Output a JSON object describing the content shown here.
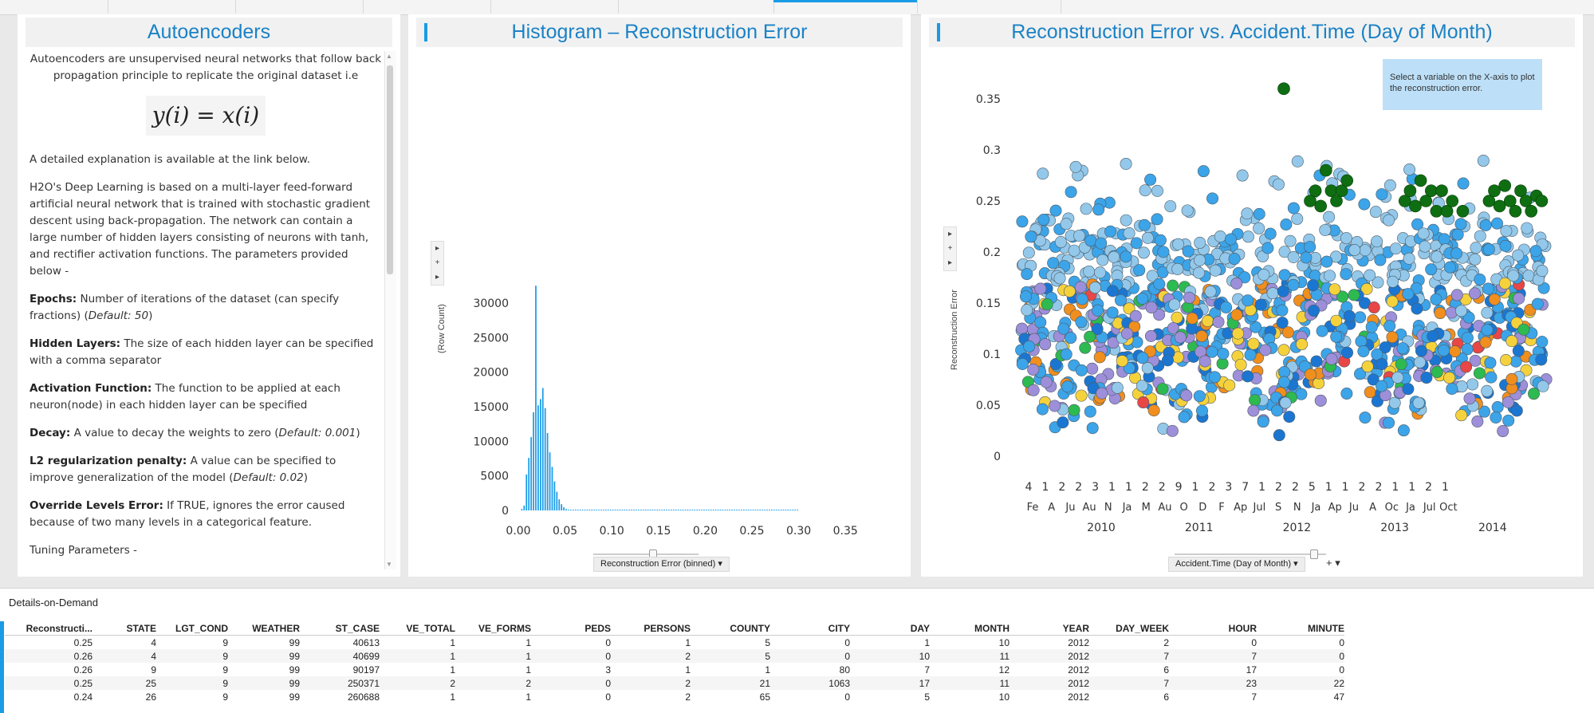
{
  "colors": {
    "accent": "#1a9be6",
    "title": "#1a82c6",
    "green": "#0f6e12"
  },
  "panel1": {
    "title": "Autoencoders",
    "intro": "Autoencoders are unsupervised neural networks that follow back propagation principle to replicate the original dataset i.e",
    "formula": "y(i) = x(i)",
    "link_note": "A detailed explanation is available at the link below.",
    "h2o_desc": "H2O's Deep Learning is based on a multi-layer feed-forward artificial neural network that is trained with stochastic gradient descent using back-propagation. The network can contain a large number of hidden layers consisting of neurons with tanh, and rectifier activation functions. The parameters provided below -",
    "params": [
      {
        "name": "Epochs:",
        "desc": "Number of iterations of the dataset (can specify fractions) (",
        "default": "Default: 50",
        "end": ")"
      },
      {
        "name": "Hidden Layers:",
        "desc": "The size of each hidden layer can be specified with a comma separator",
        "default": "",
        "end": ""
      },
      {
        "name": "Activation Function:",
        "desc": "The function to be applied at each neuron(node) in each hidden layer can be specified",
        "default": "",
        "end": ""
      },
      {
        "name": "Decay:",
        "desc": "A value to decay the weights to zero (",
        "default": "Default: 0.001",
        "end": ")"
      },
      {
        "name": "L2 regularization penalty:",
        "desc": "A value can be specified to improve generalization of the model (",
        "default": "Default: 0.02",
        "end": ")"
      },
      {
        "name": "Override Levels Error:",
        "desc": "If TRUE, ignores the error caused because of two many levels in a categorical feature.",
        "default": "",
        "end": ""
      }
    ],
    "tuning": "Tuning Parameters -"
  },
  "panel2": {
    "title": "Histogram – Reconstruction Error",
    "ylabel": "(Row Count)",
    "xaxis_selector": "Reconstruction Error (binned)",
    "ctrl": [
      "▸",
      "+",
      "▸"
    ]
  },
  "panel3": {
    "title": "Reconstruction Error vs. Accident.Time (Day of Month)",
    "ylabel": "Reconstruction Error",
    "xaxis_selector": "Accident.Time (Day of Month)",
    "plus": "+",
    "tooltip": "Select a variable on the X-axis to plot the reconstruction error.",
    "ctrl": [
      "▸",
      "+",
      "▸"
    ]
  },
  "chart_data": [
    {
      "type": "bar",
      "title": "Histogram – Reconstruction Error",
      "xlabel": "Reconstruction Error (binned)",
      "ylabel": "(Row Count)",
      "bin_width": 0.0025,
      "bins_start": 0.0,
      "values": [
        0,
        200,
        700,
        5200,
        7600,
        10600,
        14200,
        32500,
        15200,
        16100,
        17700,
        14800,
        11200,
        8400,
        6300,
        4200,
        2700,
        1600,
        900,
        450,
        200,
        90,
        40,
        20,
        10,
        8,
        6,
        5,
        4,
        3,
        3,
        2,
        2,
        2,
        2,
        1,
        1,
        1,
        1,
        1,
        1,
        1,
        1,
        1,
        1,
        1,
        1,
        1,
        1,
        1,
        1,
        1,
        1,
        1,
        1,
        1,
        1,
        1,
        1,
        1,
        1,
        1,
        1,
        1,
        1,
        1,
        1,
        1,
        1,
        1,
        1,
        1,
        1,
        1,
        1,
        1,
        1,
        1,
        1,
        1,
        1,
        1,
        1,
        1,
        1,
        1,
        1,
        1,
        1,
        1,
        1,
        1,
        1,
        1,
        1,
        1,
        1,
        1,
        1,
        1,
        1,
        1,
        1,
        1,
        1,
        1,
        1,
        1,
        1,
        1,
        1,
        1,
        1,
        1,
        1,
        1,
        1,
        1,
        1,
        1
      ],
      "x_ticks": [
        "0.00",
        "0.05",
        "0.10",
        "0.15",
        "0.20",
        "0.25",
        "0.30",
        "0.35"
      ],
      "y_ticks": [
        "0",
        "5000",
        "10000",
        "15000",
        "20000",
        "25000",
        "30000"
      ],
      "xlim": [
        0,
        0.375
      ],
      "ylim": [
        0,
        33500
      ]
    },
    {
      "type": "scatter",
      "title": "Reconstruction Error vs. Accident.Time (Day of Month)",
      "xlabel": "Accident.Time (Day of Month)",
      "ylabel": "Reconstruction Error",
      "y_ticks": [
        "0",
        "0.05",
        "0.1",
        "0.15",
        "0.2",
        "0.25",
        "0.3",
        "0.35"
      ],
      "ylim": [
        0,
        0.37
      ],
      "day_labels": [
        "4",
        "1",
        "2",
        "2",
        "3",
        "1",
        "1",
        "2",
        "2",
        "9",
        "1",
        "2",
        "3",
        "7",
        "1",
        "2",
        "2",
        "5",
        "1",
        "1",
        "2",
        "2",
        "1",
        "1",
        "2",
        "1"
      ],
      "month_labels": [
        "Fe",
        "A",
        "Ju",
        "Au",
        "N",
        "Ja",
        "M",
        "Au",
        "O",
        "D",
        "F",
        "Ap",
        "Jul",
        "S",
        "N",
        "Ja",
        "Ap",
        "Ju",
        "A",
        "Oc",
        "Ja",
        "Jul",
        "Oct"
      ],
      "year_labels": [
        "2010",
        "2011",
        "2012",
        "2013",
        "2014"
      ],
      "series_colors": [
        "#3ca4e8",
        "#1b76d2",
        "#9d8fd9",
        "#f5d23c",
        "#f08e1e",
        "#2dba50",
        "#e94646",
        "#93c8ea",
        "#0f6e12"
      ],
      "highlight_points": [
        {
          "x": 0.55,
          "y": 0.25
        },
        {
          "x": 0.56,
          "y": 0.26
        },
        {
          "x": 0.57,
          "y": 0.245
        },
        {
          "x": 0.58,
          "y": 0.28
        },
        {
          "x": 0.59,
          "y": 0.26
        },
        {
          "x": 0.6,
          "y": 0.25
        },
        {
          "x": 0.61,
          "y": 0.26
        },
        {
          "x": 0.62,
          "y": 0.27
        },
        {
          "x": 0.73,
          "y": 0.25
        },
        {
          "x": 0.74,
          "y": 0.26
        },
        {
          "x": 0.75,
          "y": 0.245
        },
        {
          "x": 0.76,
          "y": 0.27
        },
        {
          "x": 0.77,
          "y": 0.25
        },
        {
          "x": 0.78,
          "y": 0.26
        },
        {
          "x": 0.79,
          "y": 0.24
        },
        {
          "x": 0.8,
          "y": 0.26
        },
        {
          "x": 0.81,
          "y": 0.24
        },
        {
          "x": 0.82,
          "y": 0.25
        },
        {
          "x": 0.84,
          "y": 0.24
        },
        {
          "x": 0.89,
          "y": 0.25
        },
        {
          "x": 0.9,
          "y": 0.26
        },
        {
          "x": 0.91,
          "y": 0.245
        },
        {
          "x": 0.92,
          "y": 0.265
        },
        {
          "x": 0.93,
          "y": 0.25
        },
        {
          "x": 0.94,
          "y": 0.24
        },
        {
          "x": 0.95,
          "y": 0.26
        },
        {
          "x": 0.96,
          "y": 0.25
        },
        {
          "x": 0.97,
          "y": 0.24
        },
        {
          "x": 0.98,
          "y": 0.255
        },
        {
          "x": 0.99,
          "y": 0.25
        },
        {
          "x": 0.5,
          "y": 0.36
        }
      ]
    }
  ],
  "details": {
    "title": "Details-on-Demand",
    "columns": [
      "Reconstructi...",
      "STATE",
      "LGT_COND",
      "WEATHER",
      "ST_CASE",
      "VE_TOTAL",
      "VE_FORMS",
      "PEDS",
      "PERSONS",
      "COUNTY",
      "CITY",
      "DAY",
      "MONTH",
      "YEAR",
      "DAY_WEEK",
      "HOUR",
      "MINUTE"
    ],
    "rows": [
      [
        "0.25",
        "4",
        "9",
        "99",
        "40613",
        "1",
        "1",
        "0",
        "1",
        "5",
        "0",
        "1",
        "10",
        "2012",
        "2",
        "0",
        "0"
      ],
      [
        "0.26",
        "4",
        "9",
        "99",
        "40699",
        "1",
        "1",
        "0",
        "2",
        "5",
        "0",
        "10",
        "11",
        "2012",
        "7",
        "7",
        "0"
      ],
      [
        "0.26",
        "9",
        "9",
        "99",
        "90197",
        "1",
        "1",
        "3",
        "1",
        "1",
        "80",
        "7",
        "12",
        "2012",
        "6",
        "17",
        "0"
      ],
      [
        "0.25",
        "25",
        "9",
        "99",
        "250371",
        "2",
        "2",
        "0",
        "2",
        "21",
        "1063",
        "17",
        "11",
        "2012",
        "7",
        "23",
        "22"
      ],
      [
        "0.24",
        "26",
        "9",
        "99",
        "260688",
        "1",
        "1",
        "0",
        "2",
        "65",
        "0",
        "5",
        "10",
        "2012",
        "6",
        "7",
        "47"
      ]
    ]
  }
}
